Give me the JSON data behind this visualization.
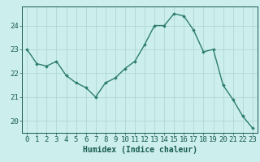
{
  "x": [
    0,
    1,
    2,
    3,
    4,
    5,
    6,
    7,
    8,
    9,
    10,
    11,
    12,
    13,
    14,
    15,
    16,
    17,
    18,
    19,
    20,
    21,
    22,
    23
  ],
  "y": [
    23.0,
    22.4,
    22.3,
    22.5,
    21.9,
    21.6,
    21.4,
    21.0,
    21.6,
    21.8,
    22.2,
    22.5,
    23.2,
    24.0,
    24.0,
    24.5,
    24.4,
    23.8,
    22.9,
    23.0,
    21.5,
    20.9,
    20.2,
    19.7
  ],
  "line_color": "#2d7d6e",
  "marker": "D",
  "marker_size": 1.8,
  "bg_color": "#cceeed",
  "grid_color": "#aad4d0",
  "xlabel": "Humidex (Indice chaleur)",
  "ylabel": "",
  "ylim": [
    19.5,
    24.8
  ],
  "yticks": [
    20,
    21,
    22,
    23,
    24
  ],
  "xticks": [
    0,
    1,
    2,
    3,
    4,
    5,
    6,
    7,
    8,
    9,
    10,
    11,
    12,
    13,
    14,
    15,
    16,
    17,
    18,
    19,
    20,
    21,
    22,
    23
  ],
  "xlabel_fontsize": 7,
  "tick_fontsize": 6.5,
  "tick_color": "#1a5c52",
  "axis_color": "#1a5c52",
  "linewidth": 1.0
}
